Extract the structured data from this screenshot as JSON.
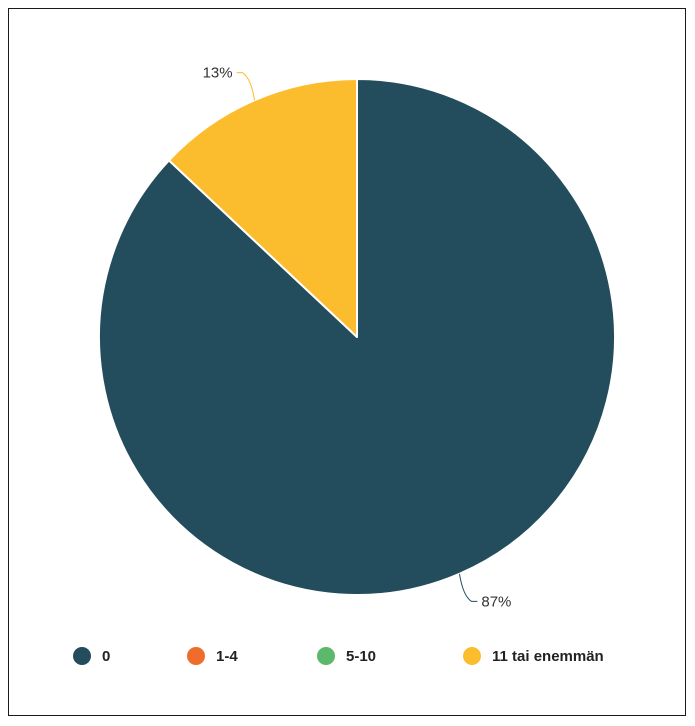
{
  "chart_data": {
    "type": "pie",
    "categories": [
      "0",
      "1-4",
      "5-10",
      "11 tai enemmän"
    ],
    "values": [
      87,
      0,
      0,
      13
    ],
    "data_labels": [
      "87%",
      "",
      "",
      "13%"
    ],
    "colors": [
      "#234c5c",
      "#ef6c2d",
      "#5cb86a",
      "#fbbd2e"
    ],
    "title": "",
    "legend_position": "bottom",
    "start_angle_deg": 0,
    "direction": "clockwise"
  }
}
